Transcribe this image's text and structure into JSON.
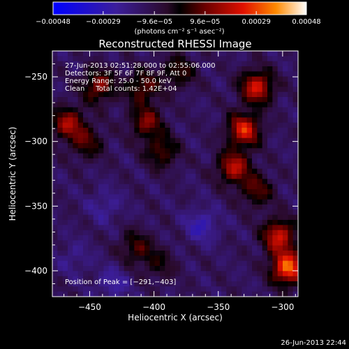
{
  "chart_data": {
    "type": "heatmap",
    "title": "Reconstructed RHESSI Image",
    "xlabel": "Heliocentric X (arcsec)",
    "ylabel": "Heliocentric Y (arcsec)",
    "xlim": [
      -479,
      -288
    ],
    "ylim": [
      -420,
      -230
    ],
    "xticks": [
      -450,
      -400,
      -350,
      -300
    ],
    "yticks": [
      -250,
      -300,
      -350,
      -400
    ],
    "xtick_labels": [
      "−450",
      "−400",
      "−350",
      "−300"
    ],
    "ytick_labels": [
      "−250",
      "−300",
      "−350",
      "−400"
    ],
    "annotations": [
      "27-Jun-2013 02:51:28.000 to 02:55:06.000",
      "Detectors: 3F 5F 6F 7F 8F 9F, Att 0",
      "Energy Range: 25.0 - 50.0 keV",
      "Clean     Total counts: 1.42E+04"
    ],
    "peak_label": "Position of Peak = [−291,−403]",
    "peak": [
      -291,
      -403
    ],
    "colorbar": {
      "range": [
        -0.00048,
        0.00048
      ],
      "tick_values": [
        -0.00048,
        -0.00029,
        -9.6e-05,
        9.6e-05,
        0.00029,
        0.00048
      ],
      "tick_labels": [
        "−0.00048",
        "−0.00029",
        "−9.6e−05",
        "9.6e−05",
        "0.00029",
        "0.00048"
      ],
      "unit_label": "(photons cm⁻² s⁻¹ asec⁻²)"
    },
    "blobs": [
      {
        "x": -443,
        "y": -257,
        "value": 0.00026
      },
      {
        "x": -409,
        "y": -258,
        "value": 0.00022
      },
      {
        "x": -381,
        "y": -246,
        "value": 0.00018
      },
      {
        "x": -320,
        "y": -258,
        "value": 0.00035
      },
      {
        "x": -406,
        "y": -285,
        "value": 0.00024
      },
      {
        "x": -394,
        "y": -308,
        "value": 0.0002
      },
      {
        "x": -330,
        "y": -291,
        "value": 0.00036
      },
      {
        "x": -338,
        "y": -320,
        "value": 0.00031
      },
      {
        "x": -320,
        "y": -338,
        "value": 0.0002
      },
      {
        "x": -452,
        "y": -301,
        "value": 0.00018
      },
      {
        "x": -467,
        "y": -286,
        "value": 0.00028
      },
      {
        "x": -303,
        "y": -373,
        "value": 0.00034
      },
      {
        "x": -296,
        "y": -398,
        "value": 0.00045
      },
      {
        "x": -414,
        "y": -382,
        "value": 0.00018
      },
      {
        "x": -396,
        "y": -395,
        "value": 0.00012
      },
      {
        "x": -438,
        "y": -350,
        "value": -0.0001
      },
      {
        "x": -363,
        "y": -365,
        "value": -0.00015
      },
      {
        "x": -432,
        "y": -410,
        "value": -0.00012
      },
      {
        "x": -462,
        "y": -390,
        "value": -8e-05
      }
    ]
  },
  "footer_date": "26-Jun-2013 22:44"
}
